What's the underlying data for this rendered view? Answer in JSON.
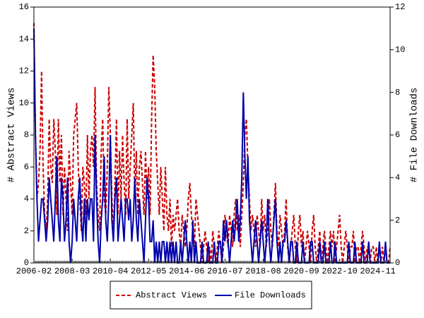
{
  "chart_data": {
    "type": "line",
    "y_label": "# Abstract Views",
    "y2_label": "# File Downloads",
    "categories": [
      "2006-02",
      null,
      null,
      null,
      null,
      null,
      null,
      null,
      null,
      null,
      null,
      null,
      null,
      null,
      null,
      null,
      null,
      null,
      null,
      null,
      null,
      null,
      null,
      null,
      null,
      "2008-03",
      null,
      null,
      null,
      null,
      null,
      null,
      null,
      null,
      null,
      null,
      null,
      null,
      null,
      null,
      null,
      null,
      null,
      null,
      null,
      null,
      null,
      null,
      null,
      null,
      "2010-04",
      null,
      null,
      null,
      null,
      null,
      null,
      null,
      null,
      null,
      null,
      null,
      null,
      null,
      null,
      null,
      null,
      null,
      null,
      null,
      null,
      null,
      null,
      null,
      null,
      "2012-05",
      null,
      null,
      null,
      null,
      null,
      null,
      null,
      null,
      null,
      null,
      null,
      null,
      null,
      null,
      null,
      null,
      null,
      null,
      null,
      null,
      null,
      null,
      null,
      null,
      "2014-06",
      null,
      null,
      null,
      null,
      null,
      null,
      null,
      null,
      null,
      null,
      null,
      null,
      null,
      null,
      null,
      null,
      null,
      null,
      null,
      null,
      null,
      null,
      null,
      null,
      "2016-07",
      null,
      null,
      null,
      null,
      null,
      null,
      null,
      null,
      null,
      null,
      null,
      null,
      null,
      null,
      null,
      null,
      null,
      null,
      null,
      null,
      null,
      null,
      null,
      null,
      "2018-08",
      null,
      null,
      null,
      null,
      null,
      null,
      null,
      null,
      null,
      null,
      null,
      null,
      null,
      null,
      null,
      null,
      null,
      null,
      null,
      null,
      null,
      null,
      null,
      null,
      "2020-09",
      null,
      null,
      null,
      null,
      null,
      null,
      null,
      null,
      null,
      null,
      null,
      null,
      null,
      null,
      null,
      null,
      null,
      null,
      null,
      null,
      null,
      null,
      null,
      null,
      "2022-10",
      null,
      null,
      null,
      null,
      null,
      null,
      null,
      null,
      null,
      null,
      null,
      null,
      null,
      null,
      null,
      null,
      null,
      null,
      null,
      null,
      null,
      null,
      null,
      null,
      "2024-11",
      null,
      null,
      null,
      null,
      null,
      null,
      null,
      null
    ],
    "series": [
      {
        "name": "Abstract Views",
        "color": "#cc0000",
        "dash": true,
        "values": [
          15,
          8,
          4,
          5,
          7,
          12,
          6,
          3,
          2,
          4,
          9,
          6,
          5,
          9,
          7,
          3,
          9,
          5,
          8,
          3,
          6,
          4,
          2,
          7,
          5,
          3,
          8,
          9,
          10,
          6,
          4,
          2,
          6,
          5,
          3,
          8,
          4,
          7,
          8,
          6,
          11,
          5,
          3,
          2,
          7,
          9,
          4,
          3,
          6,
          11,
          8,
          4,
          2,
          5,
          9,
          3,
          7,
          4,
          8,
          5,
          3,
          9,
          4,
          6,
          8,
          10,
          4,
          7,
          3,
          6,
          7,
          5,
          3,
          7,
          4,
          6,
          3,
          9,
          13,
          11,
          7,
          5,
          3,
          6,
          4,
          2,
          6,
          3,
          2,
          4,
          1,
          3,
          2,
          3,
          4,
          2,
          1,
          3,
          2,
          1,
          2,
          4,
          5,
          3,
          2,
          1,
          4,
          3,
          2,
          1,
          0,
          1,
          2,
          1,
          0,
          1,
          0,
          2,
          1,
          0,
          1,
          2,
          1,
          0,
          1,
          3,
          2,
          1,
          3,
          2,
          1,
          3,
          4,
          2,
          3,
          1,
          3,
          5,
          8,
          9,
          6,
          4,
          2,
          3,
          2,
          1,
          3,
          2,
          1,
          4,
          2,
          3,
          1,
          2,
          4,
          2,
          1,
          3,
          5,
          2,
          1,
          3,
          2,
          1,
          2,
          4,
          1,
          0,
          1,
          2,
          3,
          1,
          0,
          2,
          3,
          1,
          2,
          0,
          1,
          2,
          1,
          0,
          2,
          3,
          1,
          0,
          1,
          2,
          0,
          1,
          2,
          1,
          0,
          1,
          2,
          1,
          2,
          0,
          1,
          2,
          3,
          1,
          0,
          1,
          2,
          1,
          0,
          1,
          1,
          2,
          0,
          1,
          1,
          0,
          1,
          2,
          1,
          0,
          1,
          1,
          0,
          1,
          1,
          0,
          1,
          0,
          1,
          0,
          1,
          0,
          1,
          0,
          0,
          1
        ]
      },
      {
        "name": "File Downloads",
        "color": "#0000aa",
        "dash": false,
        "axis": "y2",
        "values": [
          11,
          6,
          3,
          1,
          2,
          3,
          3,
          2,
          1,
          2,
          4,
          3,
          2,
          1,
          3,
          5,
          2,
          1,
          4,
          3,
          1,
          2,
          4,
          1,
          0,
          1,
          3,
          2,
          1,
          3,
          4,
          2,
          1,
          3,
          1,
          3,
          2,
          3,
          3,
          1,
          6,
          3,
          1,
          0,
          2,
          3,
          5,
          2,
          1,
          3,
          6,
          2,
          1,
          3,
          4,
          1,
          2,
          3,
          2,
          1,
          3,
          3,
          2,
          3,
          1,
          2,
          4,
          2,
          1,
          3,
          2,
          1,
          0,
          2,
          4,
          3,
          1,
          1,
          2,
          0,
          1,
          0,
          1,
          0,
          1,
          1,
          0,
          1,
          0,
          1,
          0,
          1,
          0,
          1,
          0,
          0,
          1,
          0,
          1,
          2,
          1,
          0,
          1,
          0,
          2,
          0,
          1,
          0,
          0,
          0,
          1,
          0,
          0,
          0,
          1,
          0,
          0,
          0,
          1,
          0,
          0,
          1,
          1,
          0,
          2,
          1,
          2,
          1,
          0,
          1,
          2,
          1,
          2,
          3,
          1,
          2,
          4,
          8,
          5,
          3,
          5,
          2,
          1,
          0,
          1,
          2,
          1,
          0,
          1,
          2,
          1,
          0,
          1,
          3,
          1,
          0,
          1,
          2,
          3,
          1,
          0,
          1,
          0,
          1,
          1,
          2,
          1,
          0,
          1,
          1,
          0,
          0,
          1,
          0,
          0,
          0,
          1,
          0,
          0,
          0,
          0,
          1,
          1,
          0,
          0,
          0,
          0,
          1,
          0,
          0,
          1,
          0,
          0,
          0,
          1,
          0,
          0,
          1,
          0,
          0,
          0,
          0,
          0,
          0,
          0,
          0,
          1,
          0,
          0,
          0,
          1,
          0,
          0,
          0,
          0,
          1,
          0,
          0,
          0,
          1,
          0,
          0,
          0,
          0,
          0,
          0,
          1,
          0,
          0,
          0,
          1,
          0,
          0,
          0
        ]
      }
    ],
    "ylim": [
      0,
      16
    ],
    "yticks": [
      0,
      2,
      4,
      6,
      8,
      10,
      12,
      14,
      16
    ],
    "y2lim": [
      0,
      12
    ],
    "y2ticks": [
      0,
      2,
      4,
      6,
      8,
      10,
      12
    ],
    "legend": "bottom"
  }
}
